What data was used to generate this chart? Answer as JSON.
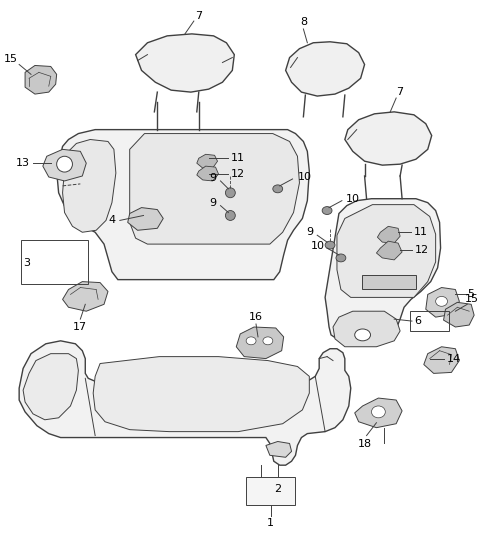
{
  "background_color": "#ffffff",
  "line_color": "#404040",
  "fig_width": 4.8,
  "fig_height": 5.33,
  "dpi": 100
}
